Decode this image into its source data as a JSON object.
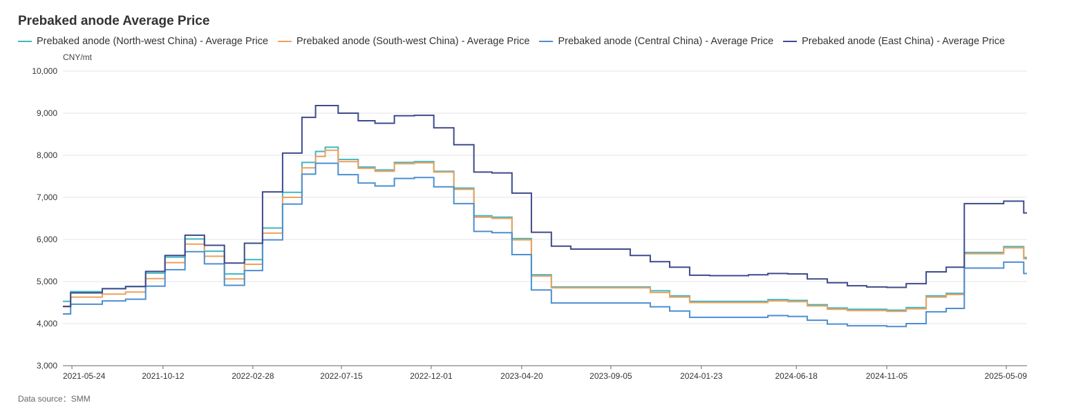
{
  "chart_data": {
    "type": "line",
    "title": "Prebaked anode Average Price",
    "unit": "CNY/mt",
    "source": "Data source：SMM",
    "ylim": [
      3000,
      10000
    ],
    "yticks": [
      3000,
      4000,
      5000,
      6000,
      7000,
      8000,
      9000,
      10000
    ],
    "ytick_labels": [
      "3,000",
      "4,000",
      "5,000",
      "6,000",
      "7,000",
      "8,000",
      "9,000",
      "10,000"
    ],
    "xlim": [
      "2021-05-10",
      "2025-06-10"
    ],
    "xticks": [
      "2021-05-24",
      "2021-10-12",
      "2022-02-28",
      "2022-07-15",
      "2022-12-01",
      "2023-04-20",
      "2023-09-05",
      "2024-01-23",
      "2024-06-18",
      "2024-11-05",
      "2025-05-09"
    ],
    "grid": true,
    "legend_position": "top-left",
    "step": true,
    "series": [
      {
        "name": "Prebaked anode (North-west China) - Average Price",
        "color": "#3fb6c2",
        "x": [
          "2021-05-10",
          "2021-05-22",
          "2021-06-15",
          "2021-07-10",
          "2021-08-15",
          "2021-09-15",
          "2021-10-15",
          "2021-11-15",
          "2021-12-15",
          "2022-01-15",
          "2022-02-15",
          "2022-03-15",
          "2022-04-15",
          "2022-05-15",
          "2022-06-05",
          "2022-06-20",
          "2022-07-10",
          "2022-08-10",
          "2022-09-05",
          "2022-10-05",
          "2022-11-05",
          "2022-12-05",
          "2023-01-05",
          "2023-02-05",
          "2023-03-05",
          "2023-04-05",
          "2023-05-05",
          "2023-06-05",
          "2023-07-05",
          "2023-08-05",
          "2023-09-05",
          "2023-10-05",
          "2023-11-05",
          "2023-12-05",
          "2024-01-05",
          "2024-02-05",
          "2024-03-05",
          "2024-04-05",
          "2024-05-05",
          "2024-06-05",
          "2024-07-05",
          "2024-08-05",
          "2024-09-05",
          "2024-10-05",
          "2024-11-05",
          "2024-12-05",
          "2025-01-05",
          "2025-02-05",
          "2025-03-05",
          "2025-04-05",
          "2025-05-05",
          "2025-06-05"
        ],
        "values": [
          4530,
          4760,
          4760,
          4830,
          4880,
          5200,
          5580,
          6010,
          5720,
          5180,
          5520,
          6270,
          7120,
          7830,
          8090,
          8190,
          7900,
          7720,
          7650,
          7830,
          7850,
          7620,
          7220,
          6560,
          6530,
          6020,
          5160,
          4870,
          4870,
          4870,
          4870,
          4870,
          4780,
          4660,
          4530,
          4530,
          4530,
          4530,
          4570,
          4550,
          4450,
          4370,
          4340,
          4340,
          4320,
          4380,
          4660,
          4720,
          5690,
          5690,
          5830,
          5570
        ]
      },
      {
        "name": "Prebaked anode (South-west China) - Average Price",
        "color": "#f0a05a",
        "x": [
          "2021-05-10",
          "2021-05-22",
          "2021-06-15",
          "2021-07-10",
          "2021-08-15",
          "2021-09-15",
          "2021-10-15",
          "2021-11-15",
          "2021-12-15",
          "2022-01-15",
          "2022-02-15",
          "2022-03-15",
          "2022-04-15",
          "2022-05-15",
          "2022-06-05",
          "2022-06-20",
          "2022-07-10",
          "2022-08-10",
          "2022-09-05",
          "2022-10-05",
          "2022-11-05",
          "2022-12-05",
          "2023-01-05",
          "2023-02-05",
          "2023-03-05",
          "2023-04-05",
          "2023-05-05",
          "2023-06-05",
          "2023-07-05",
          "2023-08-05",
          "2023-09-05",
          "2023-10-05",
          "2023-11-05",
          "2023-12-05",
          "2024-01-05",
          "2024-02-05",
          "2024-03-05",
          "2024-04-05",
          "2024-05-05",
          "2024-06-05",
          "2024-07-05",
          "2024-08-05",
          "2024-09-05",
          "2024-10-05",
          "2024-11-05",
          "2024-12-05",
          "2025-01-05",
          "2025-02-05",
          "2025-03-05",
          "2025-04-05",
          "2025-05-05",
          "2025-06-05"
        ],
        "values": [
          4400,
          4630,
          4630,
          4700,
          4750,
          5070,
          5450,
          5890,
          5600,
          5060,
          5410,
          6150,
          7000,
          7700,
          7970,
          8120,
          7850,
          7690,
          7620,
          7800,
          7820,
          7600,
          7190,
          6530,
          6500,
          5990,
          5130,
          4850,
          4850,
          4850,
          4850,
          4850,
          4740,
          4630,
          4500,
          4500,
          4500,
          4500,
          4540,
          4520,
          4420,
          4340,
          4310,
          4310,
          4290,
          4350,
          4630,
          4690,
          5660,
          5660,
          5800,
          5540
        ]
      },
      {
        "name": "Prebaked anode (Central China) - Average Price",
        "color": "#4a8fd0",
        "x": [
          "2021-05-10",
          "2021-05-22",
          "2021-06-15",
          "2021-07-10",
          "2021-08-15",
          "2021-09-15",
          "2021-10-15",
          "2021-11-15",
          "2021-12-15",
          "2022-01-15",
          "2022-02-15",
          "2022-03-15",
          "2022-04-15",
          "2022-05-15",
          "2022-06-05",
          "2022-06-20",
          "2022-07-10",
          "2022-08-10",
          "2022-09-05",
          "2022-10-05",
          "2022-11-05",
          "2022-12-05",
          "2023-01-05",
          "2023-02-05",
          "2023-03-05",
          "2023-04-05",
          "2023-05-05",
          "2023-06-05",
          "2023-07-05",
          "2023-08-05",
          "2023-09-05",
          "2023-10-05",
          "2023-11-05",
          "2023-12-05",
          "2024-01-05",
          "2024-02-05",
          "2024-03-05",
          "2024-04-05",
          "2024-05-05",
          "2024-06-05",
          "2024-07-05",
          "2024-08-05",
          "2024-09-05",
          "2024-10-05",
          "2024-11-05",
          "2024-12-05",
          "2025-01-05",
          "2025-02-05",
          "2025-03-05",
          "2025-04-05",
          "2025-05-05",
          "2025-06-05"
        ],
        "values": [
          4230,
          4460,
          4460,
          4540,
          4580,
          4890,
          5280,
          5710,
          5420,
          4910,
          5260,
          5990,
          6840,
          7550,
          7810,
          7810,
          7540,
          7340,
          7270,
          7450,
          7470,
          7250,
          6850,
          6190,
          6160,
          5640,
          4800,
          4490,
          4490,
          4490,
          4490,
          4490,
          4400,
          4300,
          4150,
          4150,
          4150,
          4150,
          4190,
          4170,
          4080,
          3990,
          3950,
          3950,
          3930,
          4000,
          4280,
          4360,
          5320,
          5320,
          5460,
          5190
        ]
      },
      {
        "name": "Prebaked anode (East China) - Average Price",
        "color": "#3d4a8a",
        "x": [
          "2021-05-10",
          "2021-05-22",
          "2021-06-15",
          "2021-07-10",
          "2021-08-15",
          "2021-09-15",
          "2021-10-15",
          "2021-11-15",
          "2021-12-15",
          "2022-01-15",
          "2022-02-15",
          "2022-03-15",
          "2022-04-15",
          "2022-05-15",
          "2022-06-05",
          "2022-07-10",
          "2022-08-10",
          "2022-09-05",
          "2022-10-05",
          "2022-11-05",
          "2022-12-05",
          "2023-01-05",
          "2023-02-05",
          "2023-03-05",
          "2023-04-05",
          "2023-05-05",
          "2023-06-05",
          "2023-07-05",
          "2023-08-05",
          "2023-09-05",
          "2023-10-05",
          "2023-11-05",
          "2023-12-05",
          "2024-01-05",
          "2024-02-05",
          "2024-03-05",
          "2024-04-05",
          "2024-05-05",
          "2024-06-05",
          "2024-07-05",
          "2024-08-05",
          "2024-09-05",
          "2024-10-05",
          "2024-11-05",
          "2024-12-05",
          "2025-01-05",
          "2025-02-05",
          "2025-03-05",
          "2025-04-05",
          "2025-05-05",
          "2025-06-05"
        ],
        "values": [
          4410,
          4730,
          4730,
          4830,
          4880,
          5240,
          5620,
          6100,
          5860,
          5440,
          5910,
          7130,
          8050,
          8900,
          9180,
          9000,
          8820,
          8760,
          8940,
          8950,
          8650,
          8250,
          7600,
          7580,
          7100,
          6170,
          5840,
          5770,
          5770,
          5770,
          5620,
          5470,
          5340,
          5150,
          5140,
          5140,
          5160,
          5190,
          5180,
          5060,
          4970,
          4900,
          4870,
          4860,
          4950,
          5230,
          5340,
          6850,
          6850,
          6910,
          6630
        ]
      }
    ]
  }
}
